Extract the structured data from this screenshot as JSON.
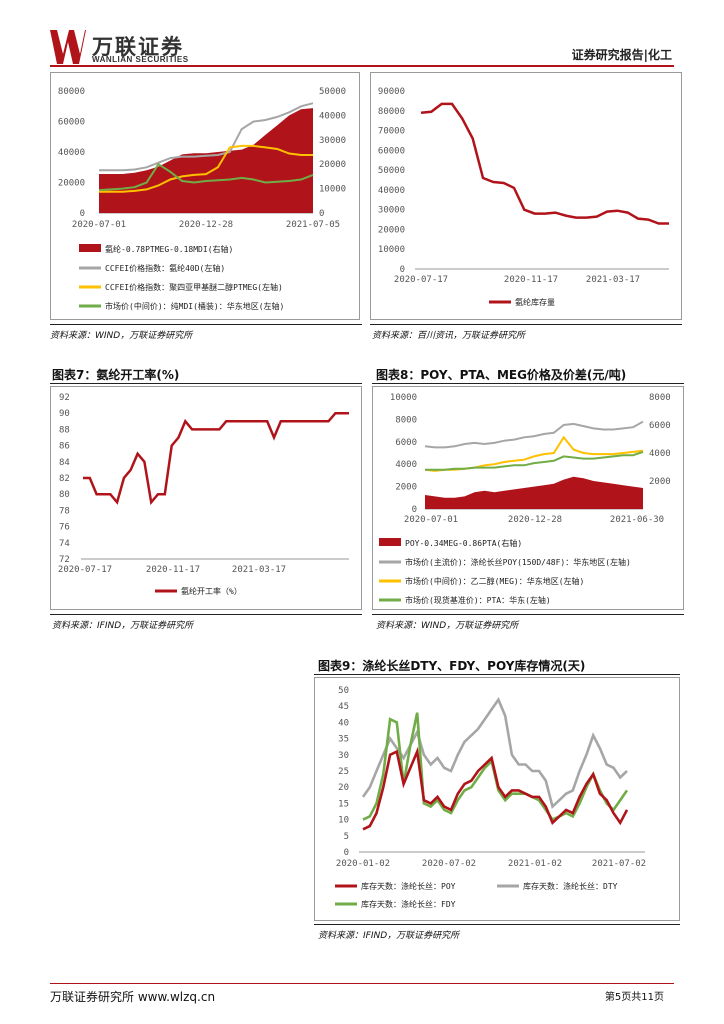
{
  "header": {
    "logo_cn": "万联证券",
    "logo_en": "WANLIAN SECURITIES",
    "report_type": "证券研究报告|化工"
  },
  "colors": {
    "dark_red": "#b0141a",
    "gray": "#a6a6a6",
    "yellow": "#ffc000",
    "green": "#70ad47"
  },
  "fig5": {
    "source": "资料来源：WIND，万联证券研究所",
    "legend": [
      "氨纶-0.78PTMEG-0.18MDI(右轴)",
      "CCFEI价格指数：氨纶40D(左轴)",
      "CCFEI价格指数：聚四亚甲基醚二醇PTMEG(左轴)",
      "市场价(中间价)：纯MDI(桶装)：华东地区(左轴)"
    ]
  },
  "fig6": {
    "source": "资料来源：百川资讯，万联证券研究所",
    "legend": [
      "氨纶库存量"
    ]
  },
  "fig7": {
    "title": "图表7：氨纶开工率(%)",
    "source": "资料来源：IFIND，万联证券研究所",
    "legend": [
      "氨纶开工率（%）"
    ]
  },
  "fig8": {
    "title": "图表8：POY、PTA、MEG价格及价差(元/吨)",
    "source": "资料来源：WIND，万联证券研究所",
    "legend": [
      "POY-0.34MEG-0.86PTA(右轴)",
      "市场价(主流价)：涤纶长丝POY(150D/48F)：华东地区(左轴)",
      "市场价(中间价)：乙二醇(MEG)：华东地区(左轴)",
      "市场价(现货基准价)：PTA：华东(左轴)"
    ]
  },
  "fig9": {
    "title": "图表9：涤纶长丝DTY、FDY、POY库存情况(天)",
    "source": "资料来源：IFIND，万联证券研究所",
    "legend": [
      "库存天数：涤纶长丝：POY",
      "库存天数：涤纶长丝：DTY",
      "库存天数：涤纶长丝：FDY"
    ]
  },
  "chart_data": [
    {
      "type": "line",
      "x_ticks": [
        "2020-07-01",
        "2020-12-28",
        "2021-07-05"
      ],
      "ylim_left": [
        0,
        80000
      ],
      "y_ticks_left": [
        "0",
        "20000",
        "40000",
        "60000",
        "80000"
      ],
      "ylim_right": [
        0,
        50000
      ],
      "y_ticks_right": [
        "0",
        "10000",
        "20000",
        "30000",
        "40000",
        "50000"
      ],
      "series": [
        {
          "name": "氨纶-0.78PTMEG-0.18MDI(右轴)",
          "kind": "area",
          "axis": "right",
          "values": [
            16000,
            16000,
            16000,
            16500,
            17500,
            19000,
            21500,
            24000,
            24500,
            24500,
            25000,
            25500,
            26000,
            28000,
            32000,
            36000,
            40000,
            42500,
            43000
          ]
        },
        {
          "name": "CCFEI价格指数：氨纶40D(左轴)",
          "axis": "left",
          "values": [
            28000,
            28000,
            28000,
            28500,
            30000,
            33000,
            36000,
            37000,
            37000,
            37500,
            38000,
            40000,
            55000,
            60000,
            61000,
            63000,
            66000,
            70000,
            72000
          ]
        },
        {
          "name": "CCFEI价格指数：聚四亚甲基醚二醇PTMEG(左轴)",
          "axis": "left",
          "values": [
            14000,
            14000,
            14000,
            14500,
            15500,
            18000,
            22000,
            24000,
            25000,
            25500,
            30000,
            43000,
            44000,
            44000,
            43000,
            42000,
            39000,
            38000,
            38000
          ]
        },
        {
          "name": "市场价(中间价)：纯MDI(桶装)：华东地区(左轴)",
          "axis": "left",
          "values": [
            15000,
            15500,
            16000,
            17000,
            20000,
            32000,
            27000,
            21000,
            20000,
            21000,
            21500,
            22000,
            23000,
            22000,
            20000,
            20500,
            21000,
            22000,
            25000
          ]
        }
      ]
    },
    {
      "type": "line",
      "x_ticks": [
        "2020-07-17",
        "2020-11-17",
        "2021-03-17"
      ],
      "ylim": [
        0,
        90000
      ],
      "y_ticks": [
        "0",
        "10000",
        "20000",
        "30000",
        "40000",
        "50000",
        "60000",
        "70000",
        "80000",
        "90000"
      ],
      "series": [
        {
          "name": "氨纶库存量",
          "values": [
            79000,
            79500,
            83500,
            83500,
            76000,
            66000,
            46000,
            44000,
            43500,
            41000,
            30000,
            28000,
            28000,
            28500,
            27000,
            26000,
            26000,
            26500,
            29000,
            29500,
            28500,
            25500,
            25000,
            23000,
            23000
          ]
        }
      ]
    },
    {
      "type": "line",
      "x_ticks": [
        "2020-07-17",
        "2020-11-17",
        "2021-03-17"
      ],
      "ylim": [
        72,
        92
      ],
      "y_ticks": [
        "72",
        "74",
        "76",
        "78",
        "80",
        "82",
        "84",
        "86",
        "88",
        "90",
        "92"
      ],
      "series": [
        {
          "name": "氨纶开工率（%）",
          "values": [
            82,
            82,
            80,
            80,
            80,
            79,
            82,
            83,
            85,
            84,
            79,
            80,
            80,
            86,
            87,
            89,
            88,
            88,
            88,
            88,
            88,
            89,
            89,
            89,
            89,
            89,
            89,
            89,
            87,
            89,
            89,
            89,
            89,
            89,
            89,
            89,
            89,
            90,
            90,
            90
          ]
        }
      ]
    },
    {
      "type": "line",
      "x_ticks": [
        "2020-07-01",
        "2020-12-28",
        "2021-06-30"
      ],
      "ylim_left": [
        0,
        10000
      ],
      "y_ticks_left": [
        "0",
        "2000",
        "4000",
        "6000",
        "8000",
        "10000"
      ],
      "ylim_right": [
        0,
        8000
      ],
      "y_ticks_right": [
        "2000",
        "4000",
        "6000",
        "8000"
      ],
      "series": [
        {
          "name": "POY-0.34MEG-0.86PTA(右轴)",
          "kind": "area",
          "axis": "right",
          "values": [
            1000,
            900,
            800,
            800,
            900,
            1200,
            1300,
            1200,
            1300,
            1400,
            1500,
            1600,
            1700,
            1800,
            2100,
            2300,
            2200,
            2000,
            1900,
            1800,
            1700,
            1600,
            1500
          ]
        },
        {
          "name": "市场价(主流价)：涤纶长丝POY(150D/48F)：华东地区(左轴)",
          "axis": "left",
          "values": [
            5600,
            5500,
            5500,
            5600,
            5800,
            5900,
            5800,
            5900,
            6100,
            6200,
            6400,
            6500,
            6700,
            6800,
            7500,
            7600,
            7400,
            7200,
            7100,
            7100,
            7200,
            7300,
            7800
          ]
        },
        {
          "name": "市场价(中间价)：乙二醇(MEG)：华东地区(左轴)",
          "axis": "left",
          "values": [
            3500,
            3400,
            3500,
            3500,
            3600,
            3700,
            3900,
            4000,
            4200,
            4300,
            4400,
            4700,
            4900,
            5000,
            6400,
            5300,
            5000,
            4900,
            4900,
            4900,
            5000,
            5100,
            5200
          ]
        },
        {
          "name": "市场价(现货基准价)：PTA：华东(左轴)",
          "axis": "left",
          "values": [
            3500,
            3500,
            3500,
            3600,
            3600,
            3700,
            3700,
            3700,
            3800,
            3900,
            3900,
            4100,
            4200,
            4300,
            4700,
            4600,
            4500,
            4500,
            4600,
            4700,
            4800,
            4800,
            5100
          ]
        }
      ]
    },
    {
      "type": "line",
      "x_ticks": [
        "2020-01-02",
        "2020-07-02",
        "2021-01-02",
        "2021-07-02"
      ],
      "ylim": [
        0,
        50
      ],
      "y_ticks": [
        "0",
        "5",
        "10",
        "15",
        "20",
        "25",
        "30",
        "35",
        "40",
        "45",
        "50"
      ],
      "series": [
        {
          "name": "库存天数：涤纶长丝：POY",
          "values": [
            7,
            8,
            12,
            20,
            30,
            31,
            21,
            26,
            31,
            16,
            15,
            17,
            14,
            13,
            18,
            21,
            22,
            25,
            27,
            29,
            20,
            17,
            19,
            19,
            18,
            17,
            17,
            14,
            9,
            11,
            13,
            12,
            17,
            21,
            24,
            18,
            16,
            12,
            9,
            13
          ]
        },
        {
          "name": "库存天数：涤纶长丝：DTY",
          "values": [
            17,
            20,
            25,
            30,
            35,
            32,
            29,
            33,
            37,
            30,
            27,
            29,
            26,
            25,
            30,
            34,
            36,
            38,
            41,
            44,
            47,
            42,
            30,
            27,
            27,
            25,
            25,
            22,
            14,
            16,
            18,
            19,
            25,
            30,
            36,
            32,
            27,
            26,
            23,
            25
          ]
        },
        {
          "name": "库存天数：涤纶长丝：FDY",
          "values": [
            10,
            11,
            15,
            24,
            41,
            40,
            21,
            33,
            43,
            15,
            14,
            16,
            13,
            12,
            16,
            19,
            20,
            23,
            26,
            28,
            19,
            16,
            18,
            18,
            18,
            17,
            16,
            13,
            10,
            11,
            12,
            11,
            15,
            20,
            24,
            19,
            15,
            13,
            16,
            19
          ]
        }
      ]
    }
  ],
  "footer": {
    "left": "万联证券研究所 www.wlzq.cn",
    "right": "第5页共11页"
  }
}
